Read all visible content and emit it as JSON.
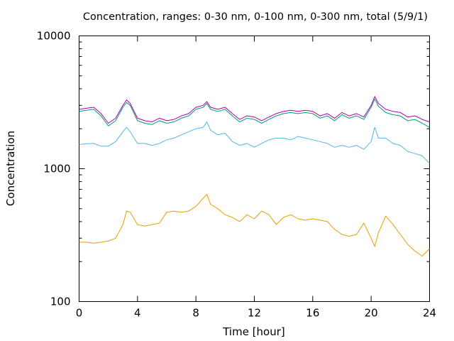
{
  "chart_data": {
    "type": "line",
    "title": "Concentration, ranges: 0-30 nm, 0-100 nm, 0-300 nm, total (5/9/1)",
    "xlabel": "Time [hour]",
    "ylabel": "Concentration",
    "xlim": [
      0,
      24
    ],
    "ylim": [
      100,
      10000
    ],
    "yscale": "log",
    "grid": false,
    "legend": "none",
    "xticks": [
      0,
      4,
      8,
      12,
      16,
      20,
      24
    ],
    "xtick_labels": [
      "0",
      "4",
      "8",
      "12",
      "16",
      "20",
      "24"
    ],
    "yticks": [
      100,
      1000,
      10000
    ],
    "ytick_labels": [
      "100",
      "1000",
      "10000"
    ],
    "x": [
      0,
      0.5,
      1,
      1.5,
      2,
      2.5,
      3,
      3.25,
      3.5,
      4,
      4.5,
      5,
      5.5,
      6,
      6.5,
      7,
      7.5,
      8,
      8.5,
      8.75,
      9,
      9.5,
      10,
      10.5,
      11,
      11.5,
      12,
      12.5,
      13,
      13.5,
      14,
      14.5,
      15,
      15.5,
      16,
      16.5,
      17,
      17.5,
      18,
      18.5,
      19,
      19.5,
      20,
      20.25,
      20.5,
      21,
      21.5,
      22,
      22.5,
      23,
      23.5,
      24
    ],
    "series": [
      {
        "color": "#b000b0",
        "values": [
          2800,
          2850,
          2900,
          2600,
          2200,
          2400,
          3000,
          3300,
          3100,
          2400,
          2300,
          2250,
          2400,
          2300,
          2350,
          2500,
          2600,
          2900,
          3000,
          3200,
          2900,
          2800,
          2900,
          2600,
          2350,
          2500,
          2450,
          2300,
          2450,
          2600,
          2700,
          2750,
          2700,
          2750,
          2700,
          2500,
          2600,
          2400,
          2650,
          2500,
          2600,
          2450,
          3000,
          3500,
          3100,
          2800,
          2700,
          2650,
          2450,
          2500,
          2350,
          2250
        ]
      },
      {
        "color": "#009e73",
        "values": [
          2700,
          2750,
          2800,
          2500,
          2100,
          2300,
          2900,
          3150,
          3000,
          2300,
          2200,
          2150,
          2300,
          2200,
          2250,
          2400,
          2500,
          2800,
          2900,
          3100,
          2800,
          2700,
          2800,
          2500,
          2250,
          2400,
          2350,
          2200,
          2350,
          2500,
          2600,
          2650,
          2600,
          2650,
          2600,
          2400,
          2500,
          2300,
          2550,
          2400,
          2500,
          2350,
          2900,
          3350,
          2950,
          2650,
          2550,
          2500,
          2300,
          2350,
          2200,
          2050
        ]
      },
      {
        "color": "#56b4e9",
        "values": [
          1520,
          1540,
          1550,
          1480,
          1480,
          1600,
          1900,
          2050,
          1900,
          1550,
          1550,
          1500,
          1550,
          1650,
          1700,
          1800,
          1900,
          2000,
          2050,
          2250,
          1950,
          1800,
          1850,
          1600,
          1500,
          1550,
          1450,
          1550,
          1650,
          1700,
          1700,
          1650,
          1750,
          1700,
          1650,
          1600,
          1550,
          1450,
          1500,
          1450,
          1500,
          1400,
          1600,
          2050,
          1700,
          1700,
          1550,
          1500,
          1350,
          1300,
          1250,
          1100
        ]
      },
      {
        "color": "#e69f00",
        "values": [
          280,
          280,
          275,
          280,
          285,
          300,
          380,
          480,
          470,
          380,
          370,
          380,
          390,
          470,
          480,
          470,
          480,
          520,
          600,
          640,
          540,
          500,
          450,
          430,
          400,
          450,
          420,
          480,
          450,
          380,
          430,
          450,
          420,
          410,
          420,
          410,
          400,
          350,
          320,
          310,
          320,
          390,
          300,
          260,
          330,
          440,
          380,
          320,
          270,
          240,
          220,
          250
        ]
      }
    ]
  }
}
